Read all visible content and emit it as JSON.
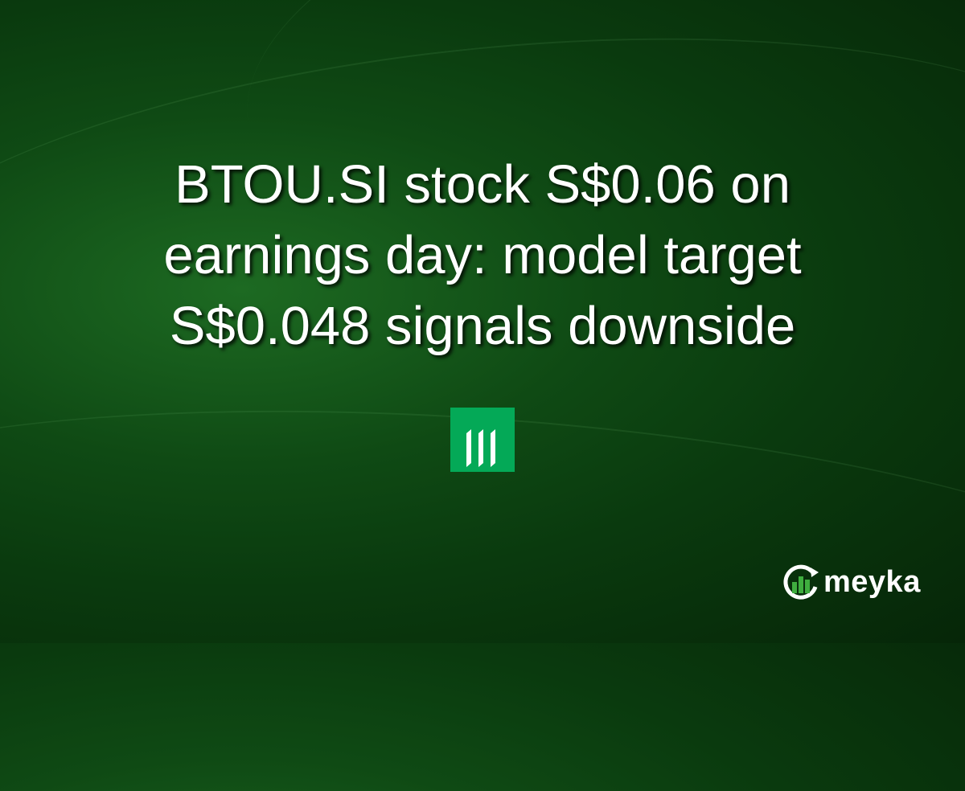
{
  "headline": {
    "lines": [
      "BTOU.SI stock S$0.06 on",
      "earnings day: model target",
      "S$0.048 signals downside"
    ]
  },
  "badge": {
    "icon": "three-bars-logo-icon",
    "color": "#04a957"
  },
  "brand": {
    "name": "meyka",
    "icon": "meyka-chart-logo-icon",
    "accent": "#3fae3f"
  }
}
